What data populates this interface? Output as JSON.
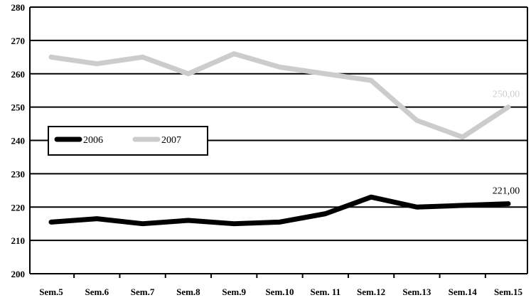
{
  "chart_data": {
    "type": "line",
    "title": "",
    "xlabel": "",
    "ylabel": "",
    "categories": [
      "Sem.5",
      "Sem.6",
      "Sem.7",
      "Sem.8",
      "Sem.9",
      "Sem.10",
      "Sem. 11",
      "Sem.12",
      "Sem.13",
      "Sem.14",
      "Sem.15"
    ],
    "ylim": [
      200,
      280
    ],
    "y_ticks": [
      200,
      210,
      220,
      230,
      240,
      250,
      260,
      270,
      280
    ],
    "y_tick_labels": [
      "200",
      "210",
      "220",
      "230",
      "240",
      "250",
      "260",
      "270",
      "280"
    ],
    "grid": true,
    "legend_placement": "left-middle",
    "series": [
      {
        "name": "2006",
        "color": "#000000",
        "x": [
          0,
          1,
          2,
          3,
          4,
          5,
          6,
          7,
          8,
          9,
          10
        ],
        "values": [
          215.5,
          216.5,
          215,
          216,
          215,
          215.5,
          218,
          223,
          220,
          220.5,
          221
        ]
      },
      {
        "name": "2007",
        "color": "#cccccc",
        "x": [
          0,
          1,
          2,
          3,
          4,
          5,
          6,
          7,
          8,
          9,
          10
        ],
        "values": [
          265,
          263,
          265,
          260,
          266,
          262,
          260,
          258,
          246,
          241,
          250
        ]
      }
    ],
    "annotations": [
      {
        "text": "250,00",
        "series": 1,
        "index": 10,
        "color": "#cccccc"
      },
      {
        "text": "221,00",
        "series": 0,
        "index": 10,
        "color": "#000000"
      }
    ]
  }
}
